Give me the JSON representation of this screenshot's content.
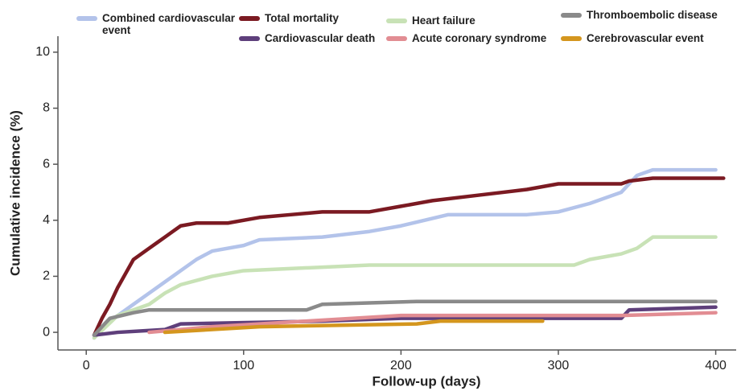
{
  "chart_data": {
    "type": "line",
    "xlabel": "Follow-up (days)",
    "ylabel": "Cumulative incidence (%)",
    "xlim": [
      -18,
      413
    ],
    "ylim": [
      -0.63,
      10.57
    ],
    "xticks": [
      0,
      100,
      200,
      300,
      400
    ],
    "yticks": [
      0,
      2,
      4,
      6,
      8,
      10
    ],
    "series": [
      {
        "name": "Combined cardiovascular event",
        "color": "#b3c3ea",
        "x": [
          5,
          10,
          20,
          30,
          40,
          50,
          60,
          70,
          80,
          100,
          110,
          150,
          180,
          200,
          230,
          280,
          300,
          320,
          340,
          350,
          360,
          400
        ],
        "values": [
          -0.2,
          0.2,
          0.6,
          1.0,
          1.4,
          1.8,
          2.2,
          2.6,
          2.9,
          3.1,
          3.3,
          3.4,
          3.6,
          3.8,
          4.2,
          4.2,
          4.3,
          4.6,
          5.0,
          5.6,
          5.8,
          5.8
        ]
      },
      {
        "name": "Total mortality",
        "color": "#7b1a22",
        "x": [
          5,
          10,
          15,
          20,
          25,
          30,
          35,
          40,
          45,
          50,
          55,
          60,
          70,
          90,
          110,
          130,
          150,
          180,
          200,
          220,
          250,
          280,
          300,
          340,
          345,
          360,
          380,
          405
        ],
        "values": [
          -0.1,
          0.5,
          1.0,
          1.6,
          2.1,
          2.6,
          2.8,
          3.0,
          3.2,
          3.4,
          3.6,
          3.8,
          3.9,
          3.9,
          4.1,
          4.2,
          4.3,
          4.3,
          4.5,
          4.7,
          4.9,
          5.1,
          5.3,
          5.3,
          5.4,
          5.5,
          5.5,
          5.5
        ]
      },
      {
        "name": "Heart failure",
        "color": "#c8e2b6",
        "x": [
          5,
          20,
          30,
          40,
          50,
          60,
          80,
          100,
          180,
          310,
          320,
          340,
          350,
          360,
          400
        ],
        "values": [
          -0.2,
          0.6,
          0.8,
          1.0,
          1.4,
          1.7,
          2.0,
          2.2,
          2.4,
          2.4,
          2.6,
          2.8,
          3.0,
          3.4,
          3.4
        ]
      },
      {
        "name": "Cardiovascular death",
        "color": "#5e3f7b",
        "x": [
          5,
          20,
          50,
          60,
          150,
          200,
          340,
          345,
          400
        ],
        "values": [
          -0.1,
          0.0,
          0.1,
          0.3,
          0.4,
          0.5,
          0.5,
          0.8,
          0.9
        ]
      },
      {
        "name": "Acute coronary syndrome",
        "color": "#e28d93",
        "x": [
          40,
          80,
          140,
          200,
          300,
          340,
          400
        ],
        "values": [
          0.0,
          0.2,
          0.4,
          0.6,
          0.6,
          0.6,
          0.7
        ]
      },
      {
        "name": "Thromboembolic disease",
        "color": "#8a8a8a",
        "x": [
          5,
          15,
          30,
          40,
          140,
          150,
          210,
          400
        ],
        "values": [
          -0.1,
          0.5,
          0.7,
          0.8,
          0.8,
          1.0,
          1.1,
          1.1
        ]
      },
      {
        "name": "Cerebrovascular event",
        "color": "#d4961e",
        "x": [
          50,
          110,
          210,
          225,
          290
        ],
        "values": [
          0.0,
          0.2,
          0.3,
          0.4,
          0.4
        ]
      }
    ]
  }
}
